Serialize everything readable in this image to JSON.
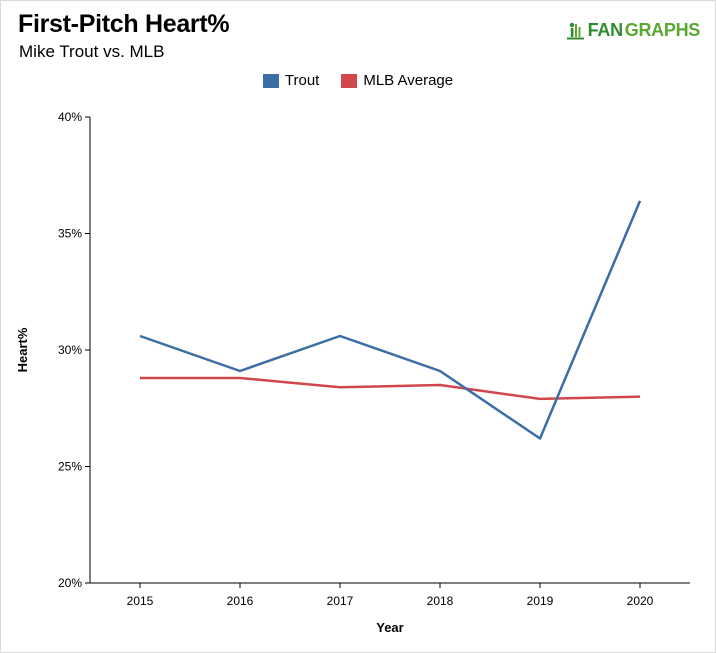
{
  "title": "First-Pitch Heart%",
  "subtitle": "Mike Trout vs. MLB",
  "logo": {
    "icon": "fangraphs-figure-icon",
    "text_fan": "FAN",
    "text_graphs": "GRAPHS",
    "color_fan": "#2e8b2e",
    "color_graphs": "#5aa832"
  },
  "chart_data": {
    "type": "line",
    "title": "First-Pitch Heart%",
    "subtitle": "Mike Trout vs. MLB",
    "xlabel": "Year",
    "ylabel": "Heart%",
    "x": [
      "2015",
      "2016",
      "2017",
      "2018",
      "2019",
      "2020"
    ],
    "ylim": [
      20,
      40
    ],
    "yticks": [
      20,
      25,
      30,
      35,
      40
    ],
    "ytick_labels": [
      "20%",
      "25%",
      "30%",
      "35%",
      "40%"
    ],
    "grid": false,
    "legend_position": "top-center",
    "series": [
      {
        "name": "Trout",
        "color": "#3a6ea5",
        "values": [
          30.6,
          29.1,
          30.6,
          29.1,
          26.2,
          36.4
        ]
      },
      {
        "name": "MLB Average",
        "color": "#d1474c",
        "values": [
          28.8,
          28.8,
          28.4,
          28.5,
          27.9,
          28.0
        ]
      }
    ]
  }
}
